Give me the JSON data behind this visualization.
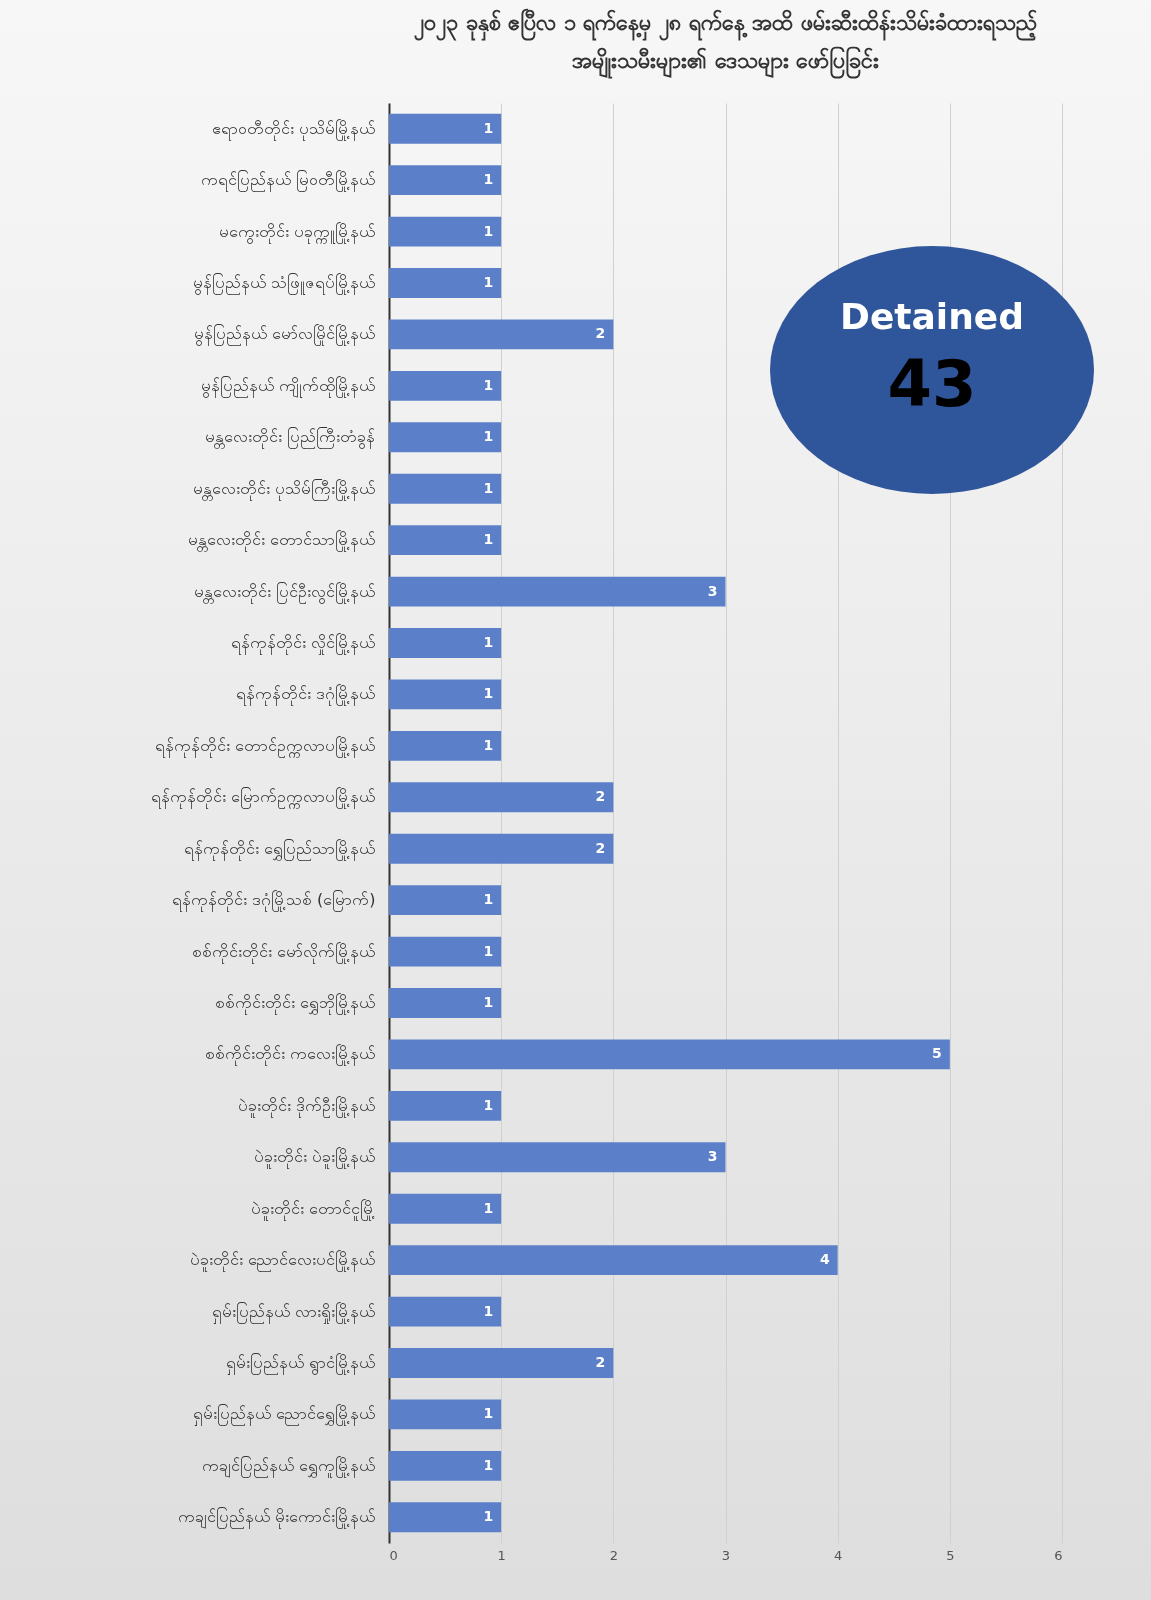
{
  "chart_data": {
    "type": "bar",
    "orientation": "horizontal",
    "title": [
      "၂၀၂၃ ခုနှစ် ဧပြီလ ၁ ရက်နေ့မှ ၂၈ ရက်နေ့ အထိ ဖမ်းဆီးထိန်းသိမ်းခံထားရသည့်",
      "အမျိုးသမီးများ၏ ဒေသများ ဖော်ပြခြင်း"
    ],
    "categories": [
      "ဧရာဝတီတိုင်း ပုသိမ်မြို့နယ်",
      "ကရင်ပြည်နယ် မြဝတီမြို့နယ်",
      "မကွေးတိုင်း ပခုက္ကူမြို့နယ်",
      "မွန်ပြည်နယ် သံဖြူဇရပ်မြို့နယ်",
      "မွန်ပြည်နယ် မော်လမြိုင်မြို့နယ်",
      "မွန်ပြည်နယ် ကျိုက်ထိုမြို့နယ်",
      "မန္တလေးတိုင်း ပြည်ကြီးတံခွန်",
      "မန္တလေးတိုင်း ပုသိမ်ကြီးမြို့နယ်",
      "မန္တလေးတိုင်း တောင်သာမြို့နယ်",
      "မန္တလေးတိုင်း ပြင်ဦးလွင်မြို့နယ်",
      "ရန်ကုန်တိုင်း လှိုင်မြို့နယ်",
      "ရန်ကုန်တိုင်း ဒဂုံမြို့နယ်",
      "ရန်ကုန်တိုင်း တောင်ဥက္ကလာပမြို့နယ်",
      "ရန်ကုန်တိုင်း မြောက်ဥက္ကလာပမြို့နယ်",
      "ရန်ကုန်တိုင်း ရွှေပြည်သာမြို့နယ်",
      "ရန်ကုန်တိုင်း ဒဂုံမြို့သစ် (မြောက်)",
      "စစ်ကိုင်းတိုင်း မော်လိုက်မြို့နယ်",
      "စစ်ကိုင်းတိုင်း ရွှေဘိုမြို့နယ်",
      "စစ်ကိုင်းတိုင်း ကလေးမြို့နယ်",
      "ပဲခူးတိုင်း ဒိုက်ဦးမြို့နယ်",
      "ပဲခူးတိုင်း ပဲခူးမြို့နယ်",
      "ပဲခူးတိုင်း တောင်ငူမြို့",
      "ပဲခူးတိုင်း ညောင်လေးပင်မြို့နယ်",
      "ရှမ်းပြည်နယ် လားရှိုးမြို့နယ်",
      "ရှမ်းပြည်နယ် ရွာငံမြို့နယ်",
      "ရှမ်းပြည်နယ် ညောင်ရွှေမြို့နယ်",
      "ကချင်ပြည်နယ် ရွှေကူမြို့နယ်",
      "ကချင်ပြည်နယ် မိုးကောင်းမြို့နယ်"
    ],
    "values": [
      1,
      1,
      1,
      1,
      2,
      1,
      1,
      1,
      1,
      3,
      1,
      1,
      1,
      2,
      2,
      1,
      1,
      1,
      5,
      1,
      3,
      1,
      4,
      1,
      2,
      1,
      1,
      1
    ],
    "color": "#5b80c9",
    "xlim": [
      0,
      6
    ],
    "xticks": [
      0,
      1,
      2,
      3,
      4,
      5,
      6
    ],
    "grid": "x",
    "data_labels": true,
    "annotations": [
      "Detained",
      "43"
    ]
  }
}
